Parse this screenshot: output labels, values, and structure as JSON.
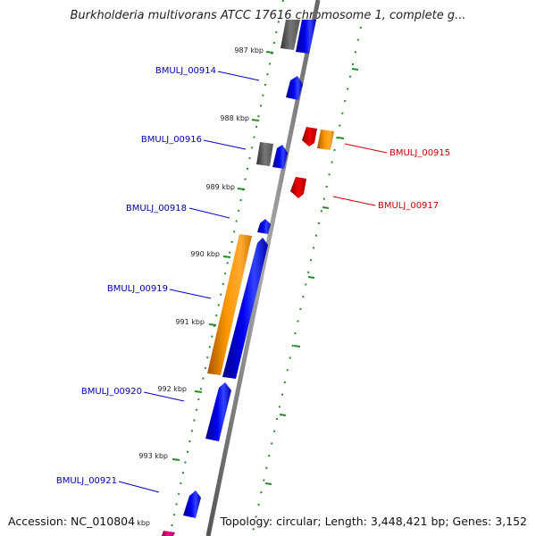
{
  "title": "Burkholderia multivorans ATCC 17616 chromosome 1, complete g...",
  "footer": {
    "accession": "Accession: NC_010804",
    "topology": "Topology: circular; Length: 3,448,421 bp; Genes: 3,152"
  },
  "colors": {
    "backbone": "#8a8a8a",
    "tick_marks": "#2a8a2a",
    "forward_label": "#0000aa",
    "reverse_label": "#cc0000",
    "gene_blue": "#0000ee",
    "gene_red": "#ee0000",
    "gene_orange": "#ff9900",
    "gene_gray": "#707070",
    "gene_pink": "#ee1188"
  },
  "ticks": [
    "987 kbp",
    "988 kbp",
    "989 kbp",
    "990 kbp",
    "991 kbp",
    "992 kbp",
    "993 kbp",
    "kbp"
  ],
  "gene_labels": {
    "forward": [
      "BMULJ_00914",
      "BMULJ_00916",
      "BMULJ_00918",
      "BMULJ_00919",
      "BMULJ_00920",
      "BMULJ_00921"
    ],
    "reverse": [
      "BMULJ_00915",
      "BMULJ_00917"
    ]
  }
}
